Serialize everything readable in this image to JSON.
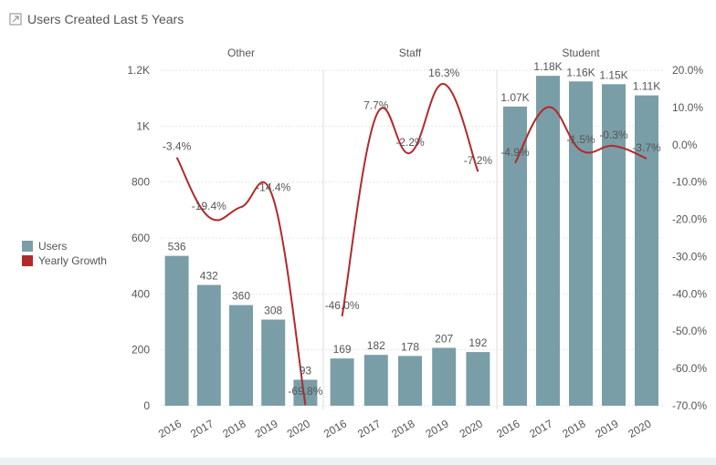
{
  "header": {
    "title": "Users Created Last 5 Years",
    "icon": "expand-icon"
  },
  "colors": {
    "bar": "#7a9ea8",
    "line": "#b3292a",
    "grid": "#e6e6e6",
    "text": "#555555"
  },
  "legend": [
    {
      "label": "Users",
      "color": "#7a9ea8"
    },
    {
      "label": "Yearly Growth",
      "color": "#b3292a"
    }
  ],
  "chart_data": {
    "type": "bar",
    "title": "Users Created Last 5 Years",
    "categories": [
      "2016",
      "2017",
      "2018",
      "2019",
      "2020"
    ],
    "y_left": {
      "min": 0,
      "max": 1200,
      "ticks": [
        0,
        200,
        400,
        600,
        800,
        1000,
        1200
      ],
      "tick_labels": [
        "0",
        "200",
        "400",
        "600",
        "800",
        "1K",
        "1.2K"
      ]
    },
    "y_right": {
      "min": -70,
      "max": 20,
      "ticks": [
        -70,
        -60,
        -50,
        -40,
        -30,
        -20,
        -10,
        0,
        10,
        20
      ],
      "tick_labels": [
        "-70.0%",
        "-60.0%",
        "-50.0%",
        "-40.0%",
        "-30.0%",
        "-20.0%",
        "-10.0%",
        "0.0%",
        "10.0%",
        "20.0%"
      ]
    },
    "legend_position": "left",
    "panels": [
      {
        "name": "Other",
        "users": [
          536,
          432,
          360,
          308,
          93
        ],
        "user_labels": [
          "536",
          "432",
          "360",
          "308",
          "93"
        ],
        "growth": [
          -3.4,
          -19.4,
          -16.7,
          -14.4,
          -69.8
        ],
        "growth_labels": [
          "-3.4%",
          "-19.4%",
          "",
          "-14.4%",
          "-69.8%"
        ]
      },
      {
        "name": "Staff",
        "users": [
          169,
          182,
          178,
          207,
          192
        ],
        "user_labels": [
          "169",
          "182",
          "178",
          "207",
          "192"
        ],
        "growth": [
          -46.0,
          7.7,
          -2.2,
          16.3,
          -7.2
        ],
        "growth_labels": [
          "-46.0%",
          "7.7%",
          "-2.2%",
          "16.3%",
          "-7.2%"
        ]
      },
      {
        "name": "Student",
        "users": [
          1070,
          1180,
          1160,
          1150,
          1110
        ],
        "user_labels": [
          "1.07K",
          "1.18K",
          "1.16K",
          "1.15K",
          "1.11K"
        ],
        "growth": [
          -4.9,
          10.1,
          -1.5,
          -0.3,
          -3.7
        ],
        "growth_labels": [
          "-4.9%",
          "",
          "-1.5%",
          "-0.3%",
          "-3.7%"
        ]
      }
    ]
  }
}
